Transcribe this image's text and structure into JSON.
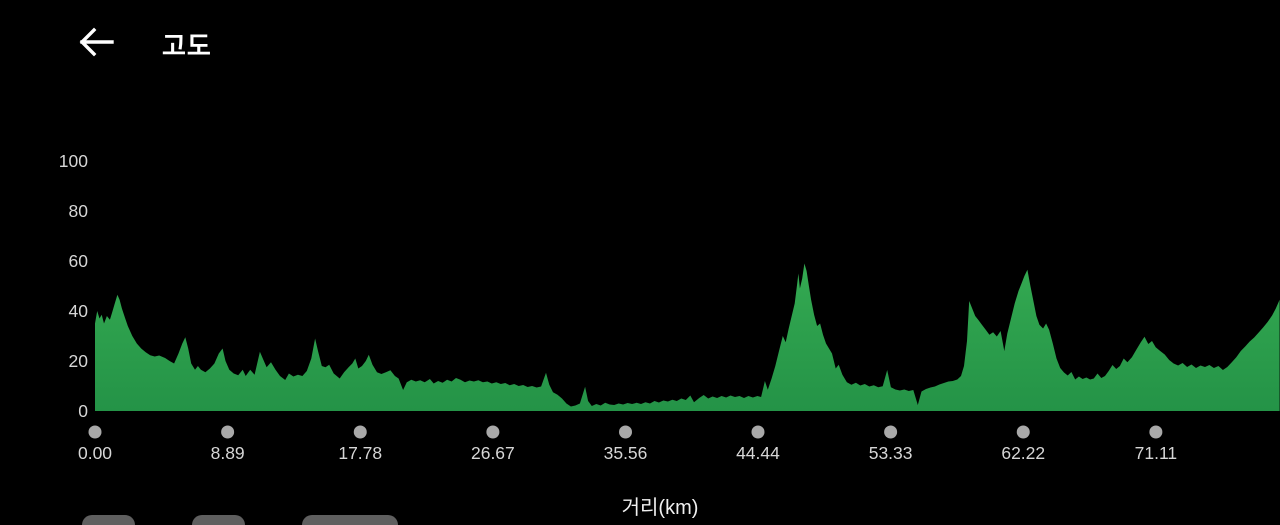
{
  "header": {
    "title": "고도",
    "back_icon": "arrow-left"
  },
  "chart_data": {
    "type": "area",
    "title": "고도",
    "xlabel": "거리(km)",
    "ylabel": "",
    "xlim": [
      0,
      79.43
    ],
    "ylim": [
      0,
      100
    ],
    "grid": false,
    "legend": "none",
    "y_ticks": [
      0,
      20,
      40,
      60,
      80,
      100
    ],
    "x_ticks": {
      "values": [
        0,
        8.89,
        17.78,
        26.67,
        35.56,
        44.44,
        53.33,
        62.22,
        71.11
      ],
      "labels": [
        "0.00",
        "8.89",
        "17.78",
        "26.67",
        "35.56",
        "44.44",
        "53.33",
        "62.22",
        "71.11"
      ]
    },
    "colors": {
      "area_top": "#35ab52",
      "area_bottom": "#249347",
      "tick_dot": "#a9a9a9",
      "axis_text": "#d6d6d6",
      "background": "#000000"
    },
    "series": [
      {
        "name": "elevation_m",
        "points": [
          [
            0,
            35
          ],
          [
            0.15,
            40
          ],
          [
            0.3,
            37
          ],
          [
            0.45,
            38.5
          ],
          [
            0.6,
            35
          ],
          [
            0.8,
            38
          ],
          [
            1.0,
            36.5
          ],
          [
            1.15,
            39.5
          ],
          [
            1.3,
            42.5
          ],
          [
            1.5,
            46.5
          ],
          [
            1.65,
            44.5
          ],
          [
            1.8,
            41
          ],
          [
            2.0,
            37.5
          ],
          [
            2.2,
            34
          ],
          [
            2.5,
            30
          ],
          [
            2.8,
            27
          ],
          [
            3.1,
            25
          ],
          [
            3.4,
            23.5
          ],
          [
            3.7,
            22.3
          ],
          [
            4.0,
            21.8
          ],
          [
            4.3,
            22.2
          ],
          [
            4.7,
            21.2
          ],
          [
            5.0,
            20
          ],
          [
            5.3,
            19
          ],
          [
            5.6,
            23
          ],
          [
            5.85,
            27
          ],
          [
            6.05,
            29.5
          ],
          [
            6.25,
            25
          ],
          [
            6.45,
            19
          ],
          [
            6.7,
            16.5
          ],
          [
            6.9,
            18
          ],
          [
            7.1,
            16.5
          ],
          [
            7.4,
            15.5
          ],
          [
            7.7,
            17
          ],
          [
            8.0,
            19
          ],
          [
            8.3,
            23
          ],
          [
            8.55,
            25
          ],
          [
            8.75,
            20
          ],
          [
            9.0,
            16.5
          ],
          [
            9.3,
            15
          ],
          [
            9.6,
            14.3
          ],
          [
            9.9,
            16.5
          ],
          [
            10.1,
            14
          ],
          [
            10.4,
            16.5
          ],
          [
            10.7,
            14.5
          ],
          [
            11.05,
            23.7
          ],
          [
            11.25,
            21
          ],
          [
            11.5,
            17.5
          ],
          [
            11.8,
            19.5
          ],
          [
            12.1,
            16.5
          ],
          [
            12.4,
            14
          ],
          [
            12.75,
            12.4
          ],
          [
            13.0,
            15
          ],
          [
            13.3,
            13.8
          ],
          [
            13.6,
            14.5
          ],
          [
            13.9,
            14
          ],
          [
            14.2,
            16
          ],
          [
            14.5,
            21
          ],
          [
            14.75,
            29
          ],
          [
            14.95,
            24
          ],
          [
            15.2,
            18
          ],
          [
            15.45,
            17.5
          ],
          [
            15.7,
            18.5
          ],
          [
            16.0,
            15
          ],
          [
            16.4,
            13
          ],
          [
            16.7,
            15.5
          ],
          [
            17.0,
            17.5
          ],
          [
            17.25,
            19
          ],
          [
            17.45,
            21
          ],
          [
            17.65,
            17
          ],
          [
            17.9,
            18
          ],
          [
            18.15,
            20
          ],
          [
            18.35,
            22.5
          ],
          [
            18.6,
            18.5
          ],
          [
            18.9,
            15.5
          ],
          [
            19.2,
            14.8
          ],
          [
            19.5,
            15.5
          ],
          [
            19.8,
            16.3
          ],
          [
            20.1,
            14
          ],
          [
            20.35,
            13
          ],
          [
            20.65,
            8.4
          ],
          [
            20.9,
            11.5
          ],
          [
            21.2,
            12.5
          ],
          [
            21.5,
            11.8
          ],
          [
            21.8,
            12.3
          ],
          [
            22.1,
            11.5
          ],
          [
            22.45,
            12.8
          ],
          [
            22.7,
            11
          ],
          [
            23.0,
            12
          ],
          [
            23.3,
            11.3
          ],
          [
            23.6,
            12.5
          ],
          [
            23.9,
            11.8
          ],
          [
            24.2,
            13.2
          ],
          [
            24.5,
            12.5
          ],
          [
            24.8,
            11.5
          ],
          [
            25.1,
            12.2
          ],
          [
            25.4,
            11.8
          ],
          [
            25.7,
            12.3
          ],
          [
            26.0,
            11.5
          ],
          [
            26.3,
            11.8
          ],
          [
            26.6,
            11
          ],
          [
            26.9,
            11.5
          ],
          [
            27.2,
            10.8
          ],
          [
            27.5,
            11.2
          ],
          [
            27.8,
            10.3
          ],
          [
            28.1,
            10.8
          ],
          [
            28.4,
            10
          ],
          [
            28.7,
            10.4
          ],
          [
            29.0,
            9.6
          ],
          [
            29.3,
            10
          ],
          [
            29.6,
            9.4
          ],
          [
            29.9,
            9.8
          ],
          [
            30.23,
            15.3
          ],
          [
            30.45,
            10.5
          ],
          [
            30.7,
            7.5
          ],
          [
            31.0,
            6.5
          ],
          [
            31.3,
            5
          ],
          [
            31.6,
            3
          ],
          [
            31.9,
            1.8
          ],
          [
            32.2,
            2.2
          ],
          [
            32.5,
            3
          ],
          [
            32.85,
            9.7
          ],
          [
            33.05,
            4
          ],
          [
            33.3,
            2
          ],
          [
            33.6,
            2.8
          ],
          [
            33.9,
            2.2
          ],
          [
            34.2,
            3.3
          ],
          [
            34.5,
            2.6
          ],
          [
            34.8,
            2.4
          ],
          [
            35.1,
            3
          ],
          [
            35.4,
            2.6
          ],
          [
            35.7,
            3.2
          ],
          [
            36.0,
            2.8
          ],
          [
            36.3,
            3.3
          ],
          [
            36.6,
            2.8
          ],
          [
            36.9,
            3.5
          ],
          [
            37.2,
            3
          ],
          [
            37.5,
            4
          ],
          [
            37.8,
            3.4
          ],
          [
            38.1,
            4.2
          ],
          [
            38.4,
            3.8
          ],
          [
            38.7,
            4.5
          ],
          [
            39.0,
            4
          ],
          [
            39.3,
            5
          ],
          [
            39.6,
            4.4
          ],
          [
            39.9,
            6.2
          ],
          [
            40.15,
            3.5
          ],
          [
            40.5,
            5.2
          ],
          [
            40.8,
            6.4
          ],
          [
            41.1,
            5
          ],
          [
            41.4,
            5.8
          ],
          [
            41.7,
            5.2
          ],
          [
            42.0,
            6
          ],
          [
            42.3,
            5.4
          ],
          [
            42.6,
            6.2
          ],
          [
            42.9,
            5.6
          ],
          [
            43.2,
            6
          ],
          [
            43.5,
            5.2
          ],
          [
            43.8,
            6
          ],
          [
            44.1,
            5.4
          ],
          [
            44.4,
            6
          ],
          [
            44.65,
            5.6
          ],
          [
            44.9,
            12
          ],
          [
            45.1,
            8.5
          ],
          [
            45.35,
            13
          ],
          [
            45.6,
            18
          ],
          [
            45.85,
            24
          ],
          [
            46.1,
            30
          ],
          [
            46.3,
            27.5
          ],
          [
            46.5,
            33
          ],
          [
            46.7,
            38
          ],
          [
            46.9,
            43
          ],
          [
            47.05,
            50
          ],
          [
            47.15,
            55
          ],
          [
            47.25,
            49
          ],
          [
            47.4,
            53
          ],
          [
            47.55,
            59
          ],
          [
            47.7,
            56
          ],
          [
            47.85,
            50
          ],
          [
            48.0,
            44.5
          ],
          [
            48.2,
            38.5
          ],
          [
            48.4,
            34
          ],
          [
            48.6,
            35
          ],
          [
            48.8,
            30.5
          ],
          [
            49.0,
            27
          ],
          [
            49.2,
            25
          ],
          [
            49.4,
            23
          ],
          [
            49.65,
            17
          ],
          [
            49.85,
            18.5
          ],
          [
            50.1,
            14.5
          ],
          [
            50.4,
            11.5
          ],
          [
            50.7,
            10.5
          ],
          [
            51.0,
            11.3
          ],
          [
            51.3,
            10.2
          ],
          [
            51.6,
            10.8
          ],
          [
            51.9,
            9.8
          ],
          [
            52.2,
            10.3
          ],
          [
            52.5,
            9.5
          ],
          [
            52.8,
            9.9
          ],
          [
            53.1,
            16.4
          ],
          [
            53.35,
            9.5
          ],
          [
            53.65,
            8.6
          ],
          [
            53.95,
            8.2
          ],
          [
            54.25,
            8.6
          ],
          [
            54.55,
            8
          ],
          [
            54.85,
            8.4
          ],
          [
            55.15,
            2.4
          ],
          [
            55.4,
            7.8
          ],
          [
            55.7,
            8.8
          ],
          [
            56.0,
            9.4
          ],
          [
            56.3,
            9.8
          ],
          [
            56.6,
            10.6
          ],
          [
            56.9,
            11.2
          ],
          [
            57.2,
            11.8
          ],
          [
            57.5,
            12
          ],
          [
            57.8,
            12.6
          ],
          [
            58.05,
            14
          ],
          [
            58.25,
            18
          ],
          [
            58.45,
            28
          ],
          [
            58.6,
            44
          ],
          [
            58.8,
            41
          ],
          [
            59.0,
            38
          ],
          [
            59.2,
            36.5
          ],
          [
            59.45,
            34.5
          ],
          [
            59.7,
            32.5
          ],
          [
            59.95,
            30.5
          ],
          [
            60.2,
            31.5
          ],
          [
            60.45,
            29.8
          ],
          [
            60.7,
            32
          ],
          [
            60.95,
            24
          ],
          [
            61.15,
            31
          ],
          [
            61.4,
            37
          ],
          [
            61.65,
            43
          ],
          [
            61.9,
            48
          ],
          [
            62.1,
            51
          ],
          [
            62.3,
            54
          ],
          [
            62.5,
            56.5
          ],
          [
            62.7,
            50
          ],
          [
            62.9,
            44
          ],
          [
            63.1,
            38
          ],
          [
            63.3,
            34.5
          ],
          [
            63.55,
            33
          ],
          [
            63.75,
            35
          ],
          [
            63.95,
            32.5
          ],
          [
            64.2,
            27
          ],
          [
            64.45,
            21
          ],
          [
            64.7,
            17.2
          ],
          [
            64.95,
            15.4
          ],
          [
            65.2,
            14.2
          ],
          [
            65.45,
            15.6
          ],
          [
            65.7,
            12.6
          ],
          [
            65.95,
            13.8
          ],
          [
            66.2,
            12.8
          ],
          [
            66.45,
            13.4
          ],
          [
            66.7,
            12.6
          ],
          [
            66.95,
            13
          ],
          [
            67.2,
            15
          ],
          [
            67.45,
            13.2
          ],
          [
            67.7,
            14
          ],
          [
            67.95,
            16
          ],
          [
            68.2,
            18.4
          ],
          [
            68.45,
            16.8
          ],
          [
            68.7,
            18
          ],
          [
            68.95,
            21
          ],
          [
            69.2,
            19.5
          ],
          [
            69.5,
            21.5
          ],
          [
            69.8,
            24.5
          ],
          [
            70.1,
            27.5
          ],
          [
            70.35,
            29.7
          ],
          [
            70.6,
            26.8
          ],
          [
            70.85,
            28
          ],
          [
            71.1,
            25.5
          ],
          [
            71.4,
            24
          ],
          [
            71.7,
            22.6
          ],
          [
            72.0,
            20.4
          ],
          [
            72.3,
            19
          ],
          [
            72.6,
            18.2
          ],
          [
            72.9,
            19.2
          ],
          [
            73.2,
            17.6
          ],
          [
            73.5,
            18.6
          ],
          [
            73.8,
            17.2
          ],
          [
            74.1,
            18.2
          ],
          [
            74.4,
            17.6
          ],
          [
            74.7,
            18.4
          ],
          [
            75.0,
            17.2
          ],
          [
            75.3,
            18
          ],
          [
            75.6,
            16.4
          ],
          [
            75.9,
            17.6
          ],
          [
            76.2,
            19.5
          ],
          [
            76.5,
            21.5
          ],
          [
            76.8,
            24
          ],
          [
            77.1,
            25.8
          ],
          [
            77.4,
            27.8
          ],
          [
            77.7,
            29.4
          ],
          [
            78.0,
            31.4
          ],
          [
            78.3,
            33.4
          ],
          [
            78.6,
            35.6
          ],
          [
            78.9,
            38.2
          ],
          [
            79.15,
            41
          ],
          [
            79.4,
            44.5
          ]
        ]
      }
    ]
  }
}
